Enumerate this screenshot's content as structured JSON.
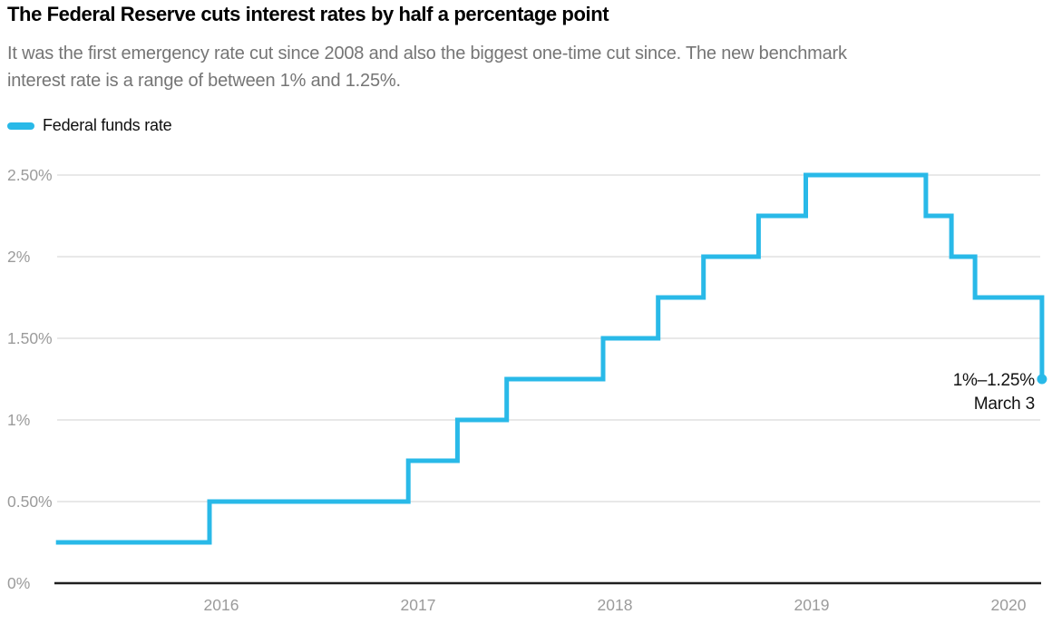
{
  "header": {
    "title": "The Federal Reserve cuts interest rates by half a percentage point",
    "subtitle_line1": "It was the first emergency rate cut since 2008 and also the biggest one-time cut since. The new benchmark",
    "subtitle_line2": "interest rate is a range of between 1% and 1.25%."
  },
  "legend": {
    "label": "Federal funds rate",
    "swatch_color": "#29b9e8"
  },
  "colors": {
    "line": "#29b9e8",
    "grid": "#d9d9d9",
    "axis": "#1f1f1f",
    "tick_label": "#9b9b9b",
    "subtitle": "#757575",
    "title": "#000000",
    "annotation": "#121212"
  },
  "chart_data": {
    "type": "line",
    "subtype": "step",
    "title": "The Federal Reserve cuts interest rates by half a percentage point",
    "xlabel": "",
    "ylabel": "Federal funds rate (%)",
    "x_range": [
      2015.16,
      2020.17
    ],
    "y_range": [
      0,
      2.5
    ],
    "grid": "horizontal",
    "legend_position": "top-left",
    "series": [
      {
        "name": "Federal funds rate",
        "color": "#29b9e8",
        "points": [
          {
            "x": 2015.16,
            "y": 0.25
          },
          {
            "x": 2015.94,
            "y": 0.5
          },
          {
            "x": 2016.95,
            "y": 0.75
          },
          {
            "x": 2017.2,
            "y": 1.0
          },
          {
            "x": 2017.45,
            "y": 1.25
          },
          {
            "x": 2017.94,
            "y": 1.5
          },
          {
            "x": 2018.22,
            "y": 1.75
          },
          {
            "x": 2018.45,
            "y": 2.0
          },
          {
            "x": 2018.73,
            "y": 2.25
          },
          {
            "x": 2018.97,
            "y": 2.5
          },
          {
            "x": 2019.58,
            "y": 2.25
          },
          {
            "x": 2019.71,
            "y": 2.0
          },
          {
            "x": 2019.83,
            "y": 1.75
          },
          {
            "x": 2020.17,
            "y": 1.25
          }
        ]
      }
    ],
    "x_ticks": [
      {
        "value": 2016,
        "label": "2016"
      },
      {
        "value": 2017,
        "label": "2017"
      },
      {
        "value": 2018,
        "label": "2018"
      },
      {
        "value": 2019,
        "label": "2019"
      },
      {
        "value": 2020,
        "label": "2020"
      }
    ],
    "y_ticks": [
      {
        "value": 0,
        "label": "0%"
      },
      {
        "value": 0.5,
        "label": "0.50%"
      },
      {
        "value": 1,
        "label": "1%"
      },
      {
        "value": 1.5,
        "label": "1.50%"
      },
      {
        "value": 2,
        "label": "2%"
      },
      {
        "value": 2.5,
        "label": "2.50%"
      }
    ],
    "annotation": {
      "value_label": "1%–1.25%",
      "date_label": "March 3"
    }
  }
}
